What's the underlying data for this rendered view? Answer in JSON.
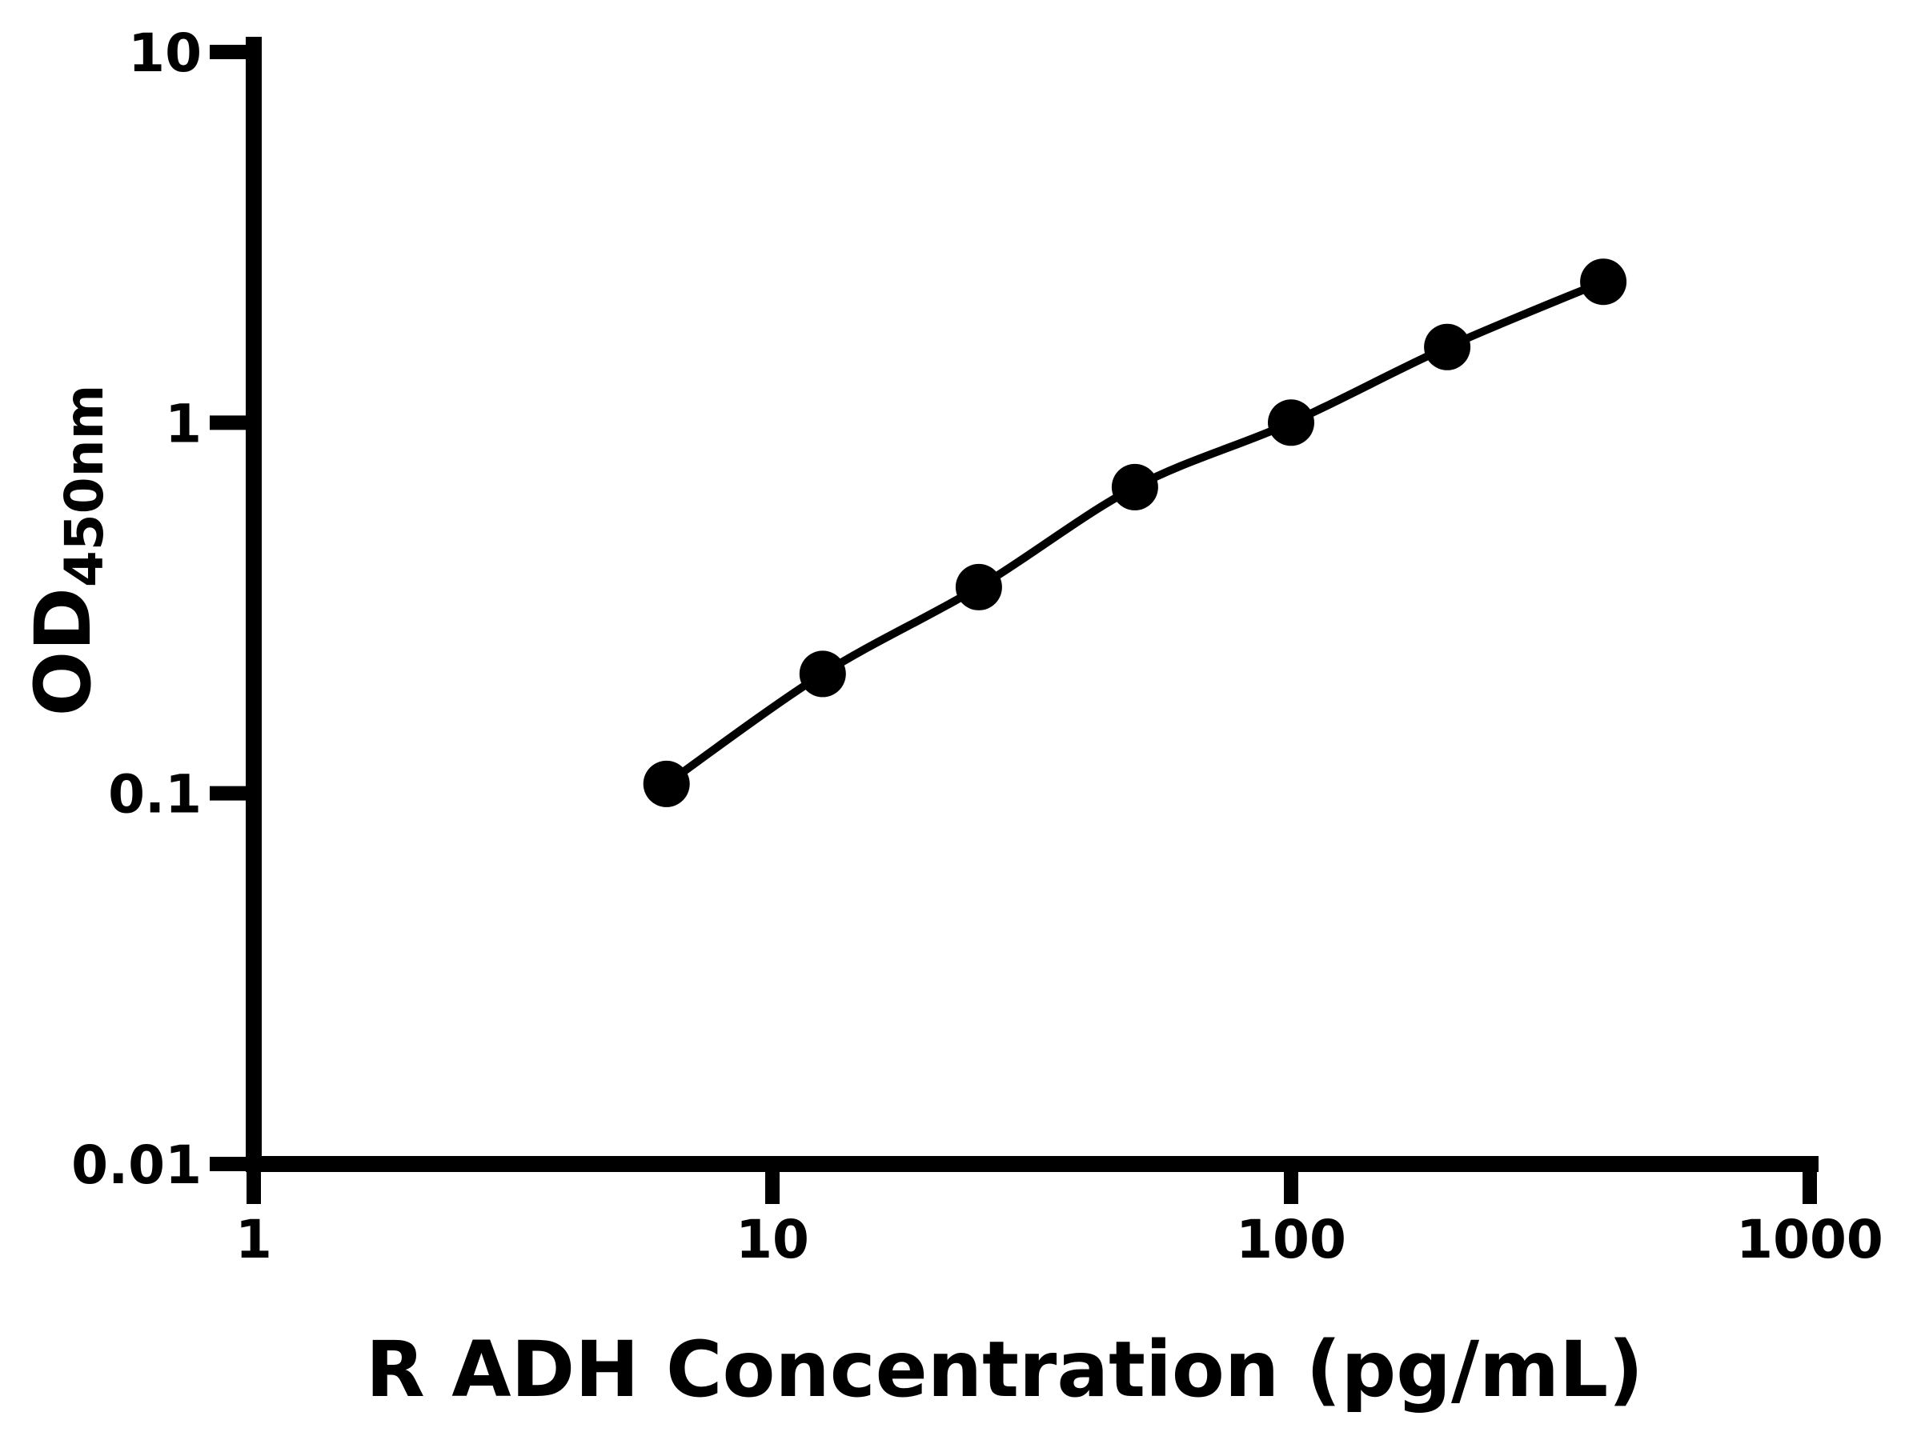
{
  "figure": {
    "background_color": "#ffffff",
    "ink_color": "#000000"
  },
  "chart_data": {
    "type": "scatter",
    "curve": "smooth-line-through-points",
    "title": "",
    "xlabel": "R ADH Concentration (pg/mL)",
    "ylabel": "OD",
    "ylabel_subscript": "450nm",
    "x_scale": "log10",
    "y_scale": "log10",
    "xlim": [
      1,
      1000
    ],
    "ylim": [
      0.01,
      10
    ],
    "x_ticks": [
      1,
      10,
      100,
      1000
    ],
    "y_ticks": [
      10,
      1,
      0.1,
      0.01
    ],
    "grid": false,
    "legend": false,
    "marker": "filled-circle",
    "marker_color": "#000000",
    "line_color": "#000000",
    "points": [
      {
        "x": 6.25,
        "y": 0.106
      },
      {
        "x": 12.5,
        "y": 0.21
      },
      {
        "x": 25,
        "y": 0.36
      },
      {
        "x": 50,
        "y": 0.67
      },
      {
        "x": 100,
        "y": 1.0
      },
      {
        "x": 200,
        "y": 1.6
      },
      {
        "x": 400,
        "y": 2.4
      }
    ]
  }
}
